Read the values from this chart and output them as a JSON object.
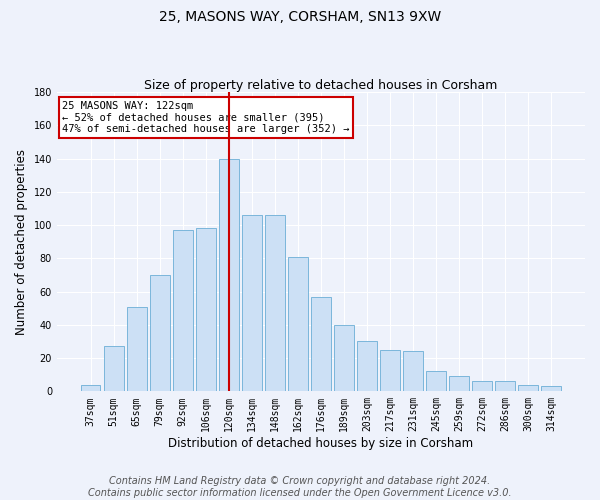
{
  "title": "25, MASONS WAY, CORSHAM, SN13 9XW",
  "subtitle": "Size of property relative to detached houses in Corsham",
  "xlabel": "Distribution of detached houses by size in Corsham",
  "ylabel": "Number of detached properties",
  "categories": [
    "37sqm",
    "51sqm",
    "65sqm",
    "79sqm",
    "92sqm",
    "106sqm",
    "120sqm",
    "134sqm",
    "148sqm",
    "162sqm",
    "176sqm",
    "189sqm",
    "203sqm",
    "217sqm",
    "231sqm",
    "245sqm",
    "259sqm",
    "272sqm",
    "286sqm",
    "300sqm",
    "314sqm"
  ],
  "values": [
    4,
    27,
    51,
    70,
    97,
    98,
    140,
    106,
    106,
    81,
    57,
    40,
    30,
    25,
    24,
    12,
    9,
    6,
    6,
    4,
    3
  ],
  "bar_color": "#cce0f5",
  "bar_edge_color": "#6baed6",
  "vline_x": 6.0,
  "vline_color": "#cc0000",
  "annotation_text": "25 MASONS WAY: 122sqm\n← 52% of detached houses are smaller (395)\n47% of semi-detached houses are larger (352) →",
  "annotation_box_color": "#ffffff",
  "annotation_box_edge": "#cc0000",
  "ylim": [
    0,
    180
  ],
  "yticks": [
    0,
    20,
    40,
    60,
    80,
    100,
    120,
    140,
    160,
    180
  ],
  "footer": "Contains HM Land Registry data © Crown copyright and database right 2024.\nContains public sector information licensed under the Open Government Licence v3.0.",
  "background_color": "#eef2fb",
  "plot_background": "#eef2fb",
  "grid_color": "#ffffff",
  "title_fontsize": 10,
  "subtitle_fontsize": 9,
  "axis_label_fontsize": 8.5,
  "tick_fontsize": 7,
  "footer_fontsize": 7,
  "annotation_fontsize": 7.5
}
